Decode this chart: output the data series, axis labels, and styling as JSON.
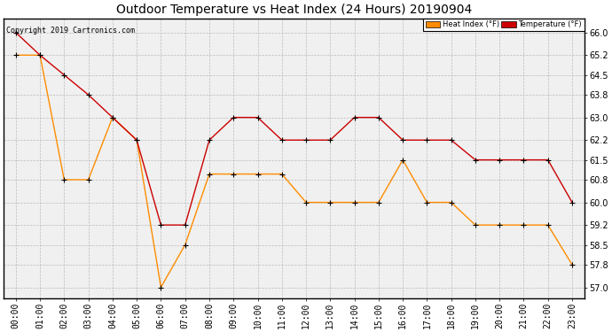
{
  "title": "Outdoor Temperature vs Heat Index (24 Hours) 20190904",
  "copyright": "Copyright 2019 Cartronics.com",
  "hours": [
    "00:00",
    "01:00",
    "02:00",
    "03:00",
    "04:00",
    "05:00",
    "06:00",
    "07:00",
    "08:00",
    "09:00",
    "10:00",
    "11:00",
    "12:00",
    "13:00",
    "14:00",
    "15:00",
    "16:00",
    "17:00",
    "18:00",
    "19:00",
    "20:00",
    "21:00",
    "22:00",
    "23:00"
  ],
  "temperature": [
    66.0,
    65.2,
    64.5,
    63.8,
    63.0,
    62.2,
    59.2,
    59.2,
    62.2,
    63.0,
    63.0,
    62.2,
    62.2,
    62.2,
    63.0,
    63.0,
    62.2,
    62.2,
    62.2,
    61.5,
    61.5,
    61.5,
    61.5,
    60.0
  ],
  "heat_index": [
    65.2,
    65.2,
    60.8,
    60.8,
    63.0,
    62.2,
    57.0,
    58.5,
    61.0,
    61.0,
    61.0,
    61.0,
    60.0,
    60.0,
    60.0,
    60.0,
    61.5,
    60.0,
    60.0,
    59.2,
    59.2,
    59.2,
    59.2,
    57.8
  ],
  "temp_color": "#cc0000",
  "heat_color": "#ff8c00",
  "bg_color": "#ffffff",
  "plot_bg_color": "#f0f0f0",
  "grid_color": "#bbbbbb",
  "border_color": "#000000",
  "ylim_min": 56.6,
  "ylim_max": 66.5,
  "yticks": [
    57.0,
    57.8,
    58.5,
    59.2,
    60.0,
    60.8,
    61.5,
    62.2,
    63.0,
    63.8,
    64.5,
    65.2,
    66.0
  ],
  "title_fontsize": 10,
  "tick_fontsize": 7,
  "copyright_fontsize": 6,
  "legend_heat_label": "Heat Index (°F)",
  "legend_temp_label": "Temperature (°F)",
  "marker_size": 4,
  "linewidth": 1.0
}
